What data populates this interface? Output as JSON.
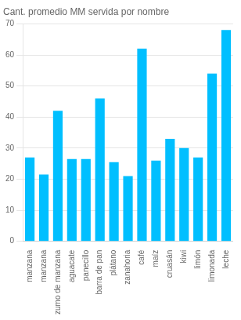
{
  "chart_data": {
    "type": "bar",
    "title": "Cant. promedio MM servida por nombre",
    "categories": [
      "manzana",
      "manzana",
      "zumo de manzana",
      "aguacate",
      "panecillo",
      "barra de pan",
      "plátano",
      "zanahoria",
      "café",
      "maíz",
      "cruasán",
      "kiwi",
      "limón",
      "limonada",
      "leche"
    ],
    "values": [
      27,
      21.5,
      42,
      26.5,
      26.5,
      46,
      25.5,
      21,
      62,
      26,
      33,
      30,
      27,
      54,
      68
    ],
    "color": "#00BFFF",
    "ylim": [
      0,
      70
    ],
    "yticks": [
      0,
      10,
      20,
      30,
      40,
      50,
      60,
      70
    ],
    "grid": true
  }
}
